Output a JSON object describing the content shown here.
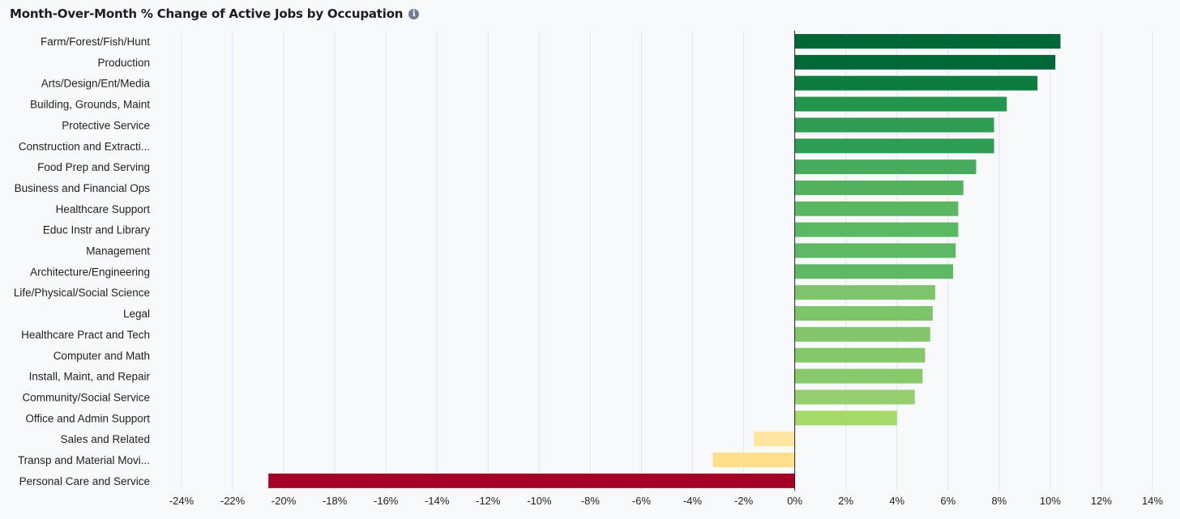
{
  "header": {
    "title": "Month-Over-Month % Change of Active Jobs by Occupation",
    "info_icon": "info-icon"
  },
  "chart_data": {
    "type": "bar",
    "orientation": "horizontal",
    "title": "Month-Over-Month % Change of Active Jobs by Occupation",
    "xlabel": "",
    "ylabel": "",
    "unit": "%",
    "xlim": [
      -24,
      14
    ],
    "ticks": [
      -24,
      -22,
      -20,
      -18,
      -16,
      -14,
      -12,
      -10,
      -8,
      -6,
      -4,
      -2,
      0,
      2,
      4,
      6,
      8,
      10,
      12,
      14
    ],
    "tick_labels": [
      "-24%",
      "-22%",
      "-20%",
      "-18%",
      "-16%",
      "-14%",
      "-12%",
      "-10%",
      "-8%",
      "-6%",
      "-4%",
      "-2%",
      "0%",
      "2%",
      "4%",
      "6%",
      "8%",
      "10%",
      "12%",
      "14%"
    ],
    "grid": true,
    "categories": [
      "Farm/Forest/Fish/Hunt",
      "Production",
      "Arts/Design/Ent/Media",
      "Building, Grounds, Maint",
      "Protective Service",
      "Construction and Extracti...",
      "Food Prep and Serving",
      "Business and Financial Ops",
      "Healthcare Support",
      "Educ Instr and Library",
      "Management",
      "Architecture/Engineering",
      "Life/Physical/Social Science",
      "Legal",
      "Healthcare Pract and Tech",
      "Computer and Math",
      "Install, Maint, and Repair",
      "Community/Social Service",
      "Office and Admin Support",
      "Sales and Related",
      "Transp and Material Movi...",
      "Personal Care and Service"
    ],
    "values": [
      10.4,
      10.2,
      9.5,
      8.3,
      7.8,
      7.8,
      7.1,
      6.6,
      6.4,
      6.4,
      6.3,
      6.2,
      5.5,
      5.4,
      5.3,
      5.1,
      5.0,
      4.7,
      4.0,
      -1.6,
      -3.2,
      -20.6
    ],
    "colors": [
      "#006837",
      "#006837",
      "#0e7b3f",
      "#23964e",
      "#2e9c52",
      "#2e9c52",
      "#46ab5b",
      "#53b25e",
      "#5ab762",
      "#5ab762",
      "#5fb964",
      "#5fb964",
      "#7ec46a",
      "#7ec46a",
      "#82c56b",
      "#85c86a",
      "#87c96b",
      "#98cf6e",
      "#a6d96a",
      "#fee6a0",
      "#fee08b",
      "#a50026"
    ]
  }
}
